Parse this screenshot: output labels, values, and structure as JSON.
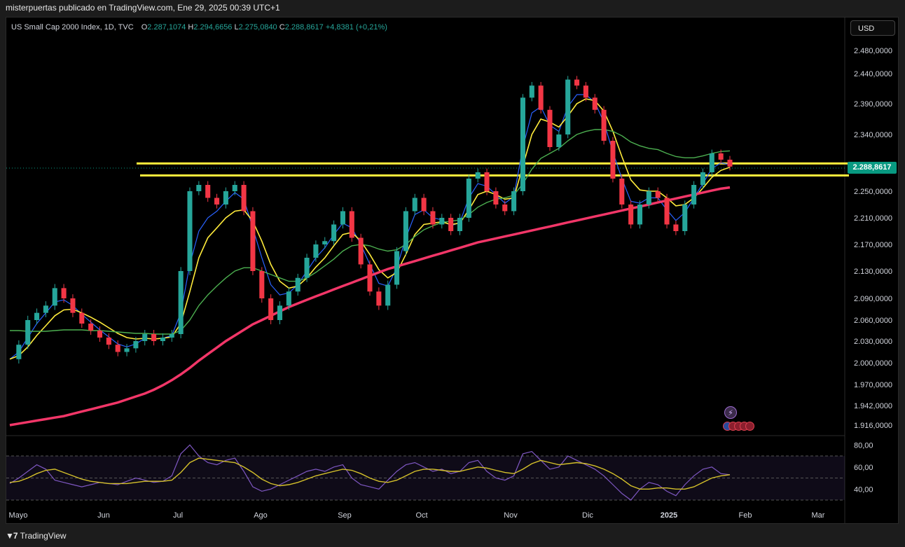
{
  "caption": "misterpuertas publicado en TradingView.com, Ene 29, 2025 00:39 UTC+1",
  "header": {
    "symbol": "US Small Cap 2000 Index, 1D, TVC",
    "o_label": "O",
    "o_value": "2.287,1074",
    "h_label": "H",
    "h_value": "2.294,6656",
    "l_label": "L",
    "l_value": "2.275,0840",
    "c_label": "C",
    "c_value": "2.288,8617",
    "change": "+4,8381 (+0,21%)"
  },
  "currency_button": "USD",
  "last_price_badge": "2.288,8617",
  "footer_brand": "TradingView",
  "colors": {
    "up": "#26a69a",
    "down": "#f23645",
    "ma_fast": "#2962ff",
    "ma_mid": "#ffeb3b",
    "ma_slow": "#4caf50",
    "ma_long": "#f23668",
    "rsi": "#7e57c2",
    "rsi_ma": "#d4c02a",
    "zone": "#ffeb3b"
  },
  "chart_data": [
    {
      "type": "candlestick",
      "title": "US Small Cap 2000 Index, 1D, TVC",
      "x_ticks": [
        "Mayo",
        "Jun",
        "Jul",
        "Ago",
        "Sep",
        "Oct",
        "Nov",
        "Dic",
        "2025",
        "Feb",
        "Mar"
      ],
      "y_ticks": [
        "2.480,0000",
        "2.440,0000",
        "2.390,0000",
        "2.340,0000",
        "2.250,0000",
        "2.210,0000",
        "2.170,0000",
        "2.130,0000",
        "2.090,0000",
        "2.060,0000",
        "2.030,0000",
        "2.000,0000",
        "1.970,0000",
        "1.942,0000",
        "1.916,0000"
      ],
      "y_tick_values": [
        2480,
        2440,
        2390,
        2340,
        2250,
        2210,
        2170,
        2130,
        2090,
        2060,
        2030,
        2000,
        1970,
        1942,
        1916
      ],
      "last_price": 2288.86,
      "close_series": [
        2005,
        2025,
        2060,
        2070,
        2080,
        2105,
        2090,
        2070,
        2055,
        2045,
        2035,
        2025,
        2015,
        2020,
        2030,
        2040,
        2030,
        2035,
        2040,
        2130,
        2250,
        2260,
        2240,
        2230,
        2250,
        2260,
        2220,
        2130,
        2090,
        2060,
        2080,
        2100,
        2120,
        2150,
        2170,
        2175,
        2200,
        2220,
        2180,
        2140,
        2100,
        2080,
        2110,
        2160,
        2220,
        2240,
        2220,
        2200,
        2210,
        2190,
        2210,
        2270,
        2280,
        2250,
        2230,
        2220,
        2250,
        2400,
        2420,
        2380,
        2320,
        2340,
        2430,
        2420,
        2400,
        2380,
        2330,
        2270,
        2230,
        2200,
        2230,
        2250,
        2240,
        2200,
        2190,
        2230,
        2260,
        2280,
        2310,
        2300,
        2289
      ],
      "moving_averages": [
        {
          "name": "MA fast",
          "values": [
            2005,
            2015,
            2035,
            2055,
            2070,
            2085,
            2088,
            2080,
            2068,
            2057,
            2046,
            2036,
            2026,
            2022,
            2026,
            2034,
            2033,
            2034,
            2038,
            2070,
            2140,
            2190,
            2210,
            2220,
            2235,
            2248,
            2238,
            2195,
            2150,
            2110,
            2095,
            2098,
            2110,
            2130,
            2150,
            2165,
            2185,
            2202,
            2195,
            2170,
            2140,
            2112,
            2108,
            2135,
            2180,
            2215,
            2222,
            2210,
            2207,
            2198,
            2203,
            2240,
            2262,
            2258,
            2245,
            2232,
            2242,
            2320,
            2375,
            2385,
            2355,
            2345,
            2385,
            2405,
            2405,
            2392,
            2360,
            2312,
            2270,
            2235,
            2232,
            2240,
            2240,
            2222,
            2206,
            2218,
            2240,
            2262,
            2286,
            2295,
            2292
          ]
        },
        {
          "name": "MA mid",
          "values": [
            2005,
            2010,
            2022,
            2038,
            2052,
            2066,
            2074,
            2075,
            2070,
            2064,
            2057,
            2049,
            2041,
            2035,
            2033,
            2034,
            2033,
            2034,
            2036,
            2055,
            2100,
            2150,
            2180,
            2195,
            2210,
            2220,
            2222,
            2205,
            2175,
            2140,
            2115,
            2105,
            2108,
            2120,
            2136,
            2150,
            2168,
            2185,
            2188,
            2175,
            2155,
            2132,
            2120,
            2128,
            2155,
            2185,
            2200,
            2202,
            2204,
            2200,
            2202,
            2222,
            2245,
            2250,
            2245,
            2238,
            2240,
            2290,
            2340,
            2365,
            2360,
            2352,
            2370,
            2390,
            2398,
            2395,
            2378,
            2345,
            2305,
            2268,
            2252,
            2250,
            2250,
            2240,
            2228,
            2230,
            2240,
            2255,
            2272,
            2283,
            2288
          ]
        },
        {
          "name": "MA slow",
          "values": [
            2045,
            2045,
            2044,
            2044,
            2044,
            2045,
            2046,
            2046,
            2046,
            2045,
            2045,
            2044,
            2043,
            2042,
            2041,
            2041,
            2040,
            2040,
            2040,
            2045,
            2060,
            2080,
            2095,
            2108,
            2120,
            2130,
            2135,
            2135,
            2130,
            2125,
            2120,
            2115,
            2115,
            2120,
            2128,
            2138,
            2148,
            2160,
            2168,
            2170,
            2168,
            2163,
            2160,
            2162,
            2170,
            2182,
            2192,
            2198,
            2203,
            2205,
            2207,
            2215,
            2226,
            2233,
            2238,
            2240,
            2244,
            2262,
            2285,
            2302,
            2310,
            2318,
            2330,
            2340,
            2345,
            2348,
            2348,
            2345,
            2338,
            2328,
            2322,
            2318,
            2316,
            2310,
            2305,
            2303,
            2303,
            2306,
            2310,
            2313,
            2314
          ]
        },
        {
          "name": "MA long",
          "values": [
            1916,
            1918,
            1920,
            1922,
            1924,
            1926,
            1928,
            1931,
            1934,
            1937,
            1940,
            1943,
            1946,
            1950,
            1954,
            1958,
            1963,
            1969,
            1976,
            1984,
            1993,
            2003,
            2012,
            2021,
            2030,
            2038,
            2046,
            2054,
            2060,
            2066,
            2072,
            2078,
            2083,
            2088,
            2093,
            2098,
            2103,
            2108,
            2113,
            2118,
            2123,
            2128,
            2133,
            2137,
            2141,
            2145,
            2149,
            2153,
            2157,
            2161,
            2165,
            2169,
            2173,
            2176,
            2179,
            2182,
            2185,
            2188,
            2191,
            2194,
            2197,
            2200,
            2203,
            2206,
            2209,
            2212,
            2215,
            2218,
            2221,
            2224,
            2227,
            2230,
            2233,
            2236,
            2239,
            2242,
            2245,
            2248,
            2251,
            2254,
            2256
          ]
        }
      ],
      "horizontal_zone": {
        "low": 2275,
        "high": 2294
      }
    },
    {
      "type": "line",
      "title": "RSI",
      "y_ticks": [
        "80,00",
        "60,00",
        "40,00"
      ],
      "y_tick_values": [
        80,
        60,
        40
      ],
      "ylim": [
        25,
        82
      ],
      "band": [
        30,
        70
      ],
      "midline": 50,
      "rsi": [
        45,
        50,
        56,
        62,
        58,
        48,
        46,
        44,
        42,
        44,
        46,
        45,
        44,
        47,
        50,
        48,
        46,
        47,
        52,
        72,
        80,
        70,
        64,
        62,
        66,
        68,
        56,
        42,
        38,
        40,
        44,
        48,
        52,
        56,
        58,
        56,
        60,
        62,
        50,
        44,
        42,
        40,
        48,
        56,
        62,
        64,
        60,
        56,
        58,
        54,
        56,
        64,
        66,
        56,
        50,
        48,
        52,
        72,
        74,
        66,
        58,
        60,
        70,
        66,
        62,
        58,
        52,
        44,
        36,
        30,
        40,
        46,
        44,
        38,
        34,
        44,
        52,
        58,
        60,
        54,
        53
      ],
      "rsi_ma": [
        46,
        47,
        50,
        54,
        57,
        58,
        55,
        52,
        49,
        47,
        46,
        45,
        45,
        45,
        46,
        47,
        47,
        47,
        48,
        55,
        64,
        68,
        67,
        66,
        65,
        64,
        60,
        55,
        49,
        45,
        43,
        44,
        46,
        49,
        52,
        54,
        56,
        58,
        57,
        54,
        50,
        47,
        46,
        48,
        52,
        56,
        58,
        58,
        57,
        56,
        56,
        58,
        60,
        59,
        57,
        55,
        54,
        58,
        63,
        66,
        64,
        62,
        63,
        64,
        63,
        61,
        58,
        54,
        49,
        43,
        40,
        40,
        41,
        41,
        40,
        40,
        42,
        46,
        50,
        52,
        53
      ]
    }
  ]
}
